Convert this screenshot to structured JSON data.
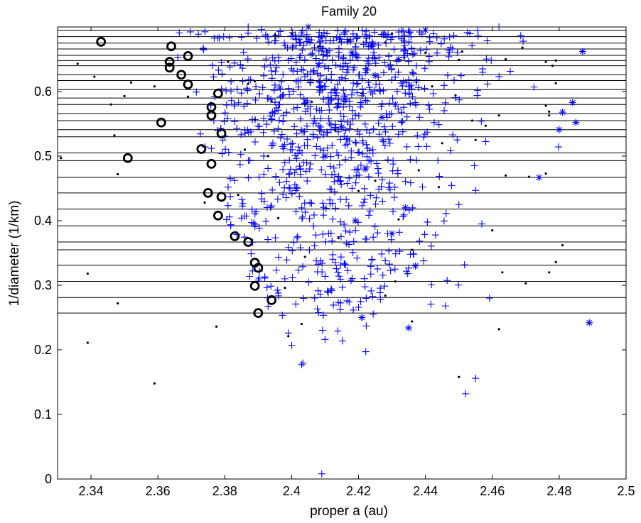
{
  "chart_data": {
    "type": "scatter",
    "title": "Family 20",
    "xlabel": "proper a (au)",
    "ylabel": "1/diameter (1/km)",
    "xlim": [
      2.33,
      2.5
    ],
    "ylim": [
      0,
      0.7
    ],
    "xticks": [
      2.34,
      2.36,
      2.38,
      2.4,
      2.42,
      2.44,
      2.46,
      2.48,
      2.5
    ],
    "xtick_labels": [
      "2.34",
      "2.36",
      "2.38",
      "2.4",
      "2.42",
      "2.44",
      "2.46",
      "2.48",
      "2.5"
    ],
    "yticks": [
      0,
      0.1,
      0.2,
      0.3,
      0.4,
      0.5,
      0.6
    ],
    "ytick_labels": [
      "0",
      "0.1",
      "0.2",
      "0.3",
      "0.4",
      "0.5",
      "0.6"
    ],
    "grid": false,
    "colors": {
      "plus": "#0000ff",
      "star": "#0000ff",
      "dot": "#000000",
      "circle": "#000000",
      "hline": "#000000"
    },
    "horizontal_lines": [
      0.257,
      0.281,
      0.306,
      0.331,
      0.355,
      0.367,
      0.392,
      0.418,
      0.443,
      0.467,
      0.493,
      0.505,
      0.53,
      0.541,
      0.555,
      0.566,
      0.58,
      0.59,
      0.603,
      0.617,
      0.626,
      0.64,
      0.648,
      0.656,
      0.666,
      0.675,
      0.685,
      0.695
    ],
    "series": [
      {
        "marker": "circle",
        "points": [
          [
            2.343,
            0.677
          ],
          [
            2.364,
            0.67
          ],
          [
            2.3635,
            0.646
          ],
          [
            2.3635,
            0.637
          ],
          [
            2.369,
            0.655
          ],
          [
            2.367,
            0.626
          ],
          [
            2.369,
            0.611
          ],
          [
            2.378,
            0.597
          ],
          [
            2.376,
            0.576
          ],
          [
            2.376,
            0.563
          ],
          [
            2.361,
            0.552
          ],
          [
            2.379,
            0.535
          ],
          [
            2.373,
            0.511
          ],
          [
            2.351,
            0.497
          ],
          [
            2.376,
            0.488
          ],
          [
            2.375,
            0.443
          ],
          [
            2.379,
            0.437
          ],
          [
            2.378,
            0.408
          ],
          [
            2.383,
            0.376
          ],
          [
            2.387,
            0.367
          ],
          [
            2.389,
            0.335
          ],
          [
            2.39,
            0.327
          ],
          [
            2.389,
            0.299
          ],
          [
            2.394,
            0.277
          ],
          [
            2.39,
            0.257
          ]
        ]
      },
      {
        "marker": "star",
        "points": [
          [
            2.405,
            0.7
          ],
          [
            2.418,
            0.66
          ],
          [
            2.424,
            0.67
          ],
          [
            2.432,
            0.65
          ],
          [
            2.44,
            0.695
          ],
          [
            2.425,
            0.625
          ],
          [
            2.431,
            0.58
          ],
          [
            2.415,
            0.545
          ],
          [
            2.422,
            0.48
          ],
          [
            2.434,
            0.42
          ],
          [
            2.419,
            0.4
          ],
          [
            2.437,
            0.33
          ],
          [
            2.43,
            0.38
          ],
          [
            2.421,
            0.25
          ],
          [
            2.435,
            0.234
          ],
          [
            2.487,
            0.662
          ],
          [
            2.484,
            0.583
          ],
          [
            2.481,
            0.568
          ],
          [
            2.48,
            0.541
          ],
          [
            2.485,
            0.552
          ],
          [
            2.474,
            0.467
          ],
          [
            2.489,
            0.242
          ],
          [
            2.41,
            0.5
          ],
          [
            2.427,
            0.56
          ],
          [
            2.408,
            0.64
          ]
        ]
      },
      {
        "marker": "dot",
        "points": [
          [
            2.331,
            0.497
          ],
          [
            2.336,
            0.643
          ],
          [
            2.339,
            0.318
          ],
          [
            2.339,
            0.211
          ],
          [
            2.341,
            0.623
          ],
          [
            2.346,
            0.58
          ],
          [
            2.347,
            0.532
          ],
          [
            2.348,
            0.472
          ],
          [
            2.348,
            0.272
          ],
          [
            2.35,
            0.593
          ],
          [
            2.352,
            0.614
          ],
          [
            2.359,
            0.608
          ],
          [
            2.359,
            0.148
          ],
          [
            2.369,
            0.592
          ],
          [
            2.374,
            0.428
          ],
          [
            2.3775,
            0.236
          ],
          [
            2.389,
            0.616
          ],
          [
            2.389,
            0.557
          ],
          [
            2.398,
            0.296
          ],
          [
            2.399,
            0.221
          ],
          [
            2.403,
            0.24
          ],
          [
            2.413,
            0.54
          ],
          [
            2.42,
            0.446
          ],
          [
            2.431,
            0.306
          ],
          [
            2.436,
            0.244
          ],
          [
            2.45,
            0.158
          ],
          [
            2.451,
            0.662
          ],
          [
            2.45,
            0.649
          ],
          [
            2.449,
            0.594
          ],
          [
            2.454,
            0.555
          ],
          [
            2.458,
            0.547
          ],
          [
            2.46,
            0.385
          ],
          [
            2.462,
            0.563
          ],
          [
            2.462,
            0.232
          ],
          [
            2.463,
            0.32
          ],
          [
            2.464,
            0.47
          ],
          [
            2.464,
            0.65
          ],
          [
            2.469,
            0.668
          ],
          [
            2.47,
            0.303
          ],
          [
            2.471,
            0.468
          ],
          [
            2.476,
            0.646
          ],
          [
            2.476,
            0.578
          ],
          [
            2.476,
            0.473
          ],
          [
            2.477,
            0.563
          ],
          [
            2.477,
            0.32
          ],
          [
            2.477,
            0.569
          ],
          [
            2.478,
            0.64
          ],
          [
            2.479,
            0.613
          ],
          [
            2.479,
            0.648
          ],
          [
            2.479,
            0.336
          ],
          [
            2.481,
            0.362
          ],
          [
            2.445,
            0.52
          ],
          [
            2.442,
            0.608
          ],
          [
            2.438,
            0.478
          ],
          [
            2.436,
            0.355
          ],
          [
            2.428,
            0.284
          ],
          [
            2.432,
            0.402
          ],
          [
            2.425,
            0.462
          ],
          [
            2.43,
            0.69
          ],
          [
            2.428,
            0.676
          ],
          [
            2.417,
            0.68
          ],
          [
            2.408,
            0.67
          ],
          [
            2.4,
            0.69
          ],
          [
            2.395,
            0.688
          ],
          [
            2.406,
            0.584
          ],
          [
            2.394,
            0.585
          ],
          [
            2.393,
            0.5
          ],
          [
            2.396,
            0.404
          ],
          [
            2.404,
            0.344
          ],
          [
            2.384,
            0.44
          ],
          [
            2.386,
            0.51
          ],
          [
            2.381,
            0.646
          ],
          [
            2.387,
            0.612
          ],
          [
            2.414,
            0.373
          ],
          [
            2.421,
            0.597
          ],
          [
            2.444,
            0.452
          ],
          [
            2.44,
            0.66
          ],
          [
            2.455,
            0.525
          ]
        ]
      }
    ],
    "plus_clouds": [
      {
        "cx": 2.412,
        "cy": 0.62,
        "sx": 0.02,
        "sy": 0.06,
        "n": 340
      },
      {
        "cx": 2.405,
        "cy": 0.47,
        "sx": 0.015,
        "sy": 0.08,
        "n": 220
      },
      {
        "cx": 2.423,
        "cy": 0.52,
        "sx": 0.017,
        "sy": 0.09,
        "n": 200
      },
      {
        "cx": 2.413,
        "cy": 0.33,
        "sx": 0.017,
        "sy": 0.05,
        "n": 110
      },
      {
        "cx": 2.427,
        "cy": 0.66,
        "sx": 0.018,
        "sy": 0.03,
        "n": 80
      }
    ],
    "plus_extra_points": [
      [
        2.409,
        0.008
      ],
      [
        2.403,
        0.177
      ],
      [
        2.452,
        0.132
      ],
      [
        2.455,
        0.156
      ],
      [
        2.446,
        0.268
      ],
      [
        2.45,
        0.425
      ],
      [
        2.455,
        0.447
      ],
      [
        2.462,
        0.7
      ],
      [
        2.4,
        0.207
      ],
      [
        2.399,
        0.226
      ],
      [
        2.421,
        0.25
      ],
      [
        2.42,
        0.266
      ],
      [
        2.412,
        0.292
      ],
      [
        2.388,
        0.397
      ],
      [
        2.385,
        0.404
      ],
      [
        2.381,
        0.452
      ],
      [
        2.38,
        0.531
      ],
      [
        2.382,
        0.586
      ],
      [
        2.379,
        0.604
      ],
      [
        2.385,
        0.684
      ],
      [
        2.387,
        0.7
      ],
      [
        2.391,
        0.696
      ],
      [
        2.376,
        0.512
      ],
      [
        2.392,
        0.313
      ],
      [
        2.396,
        0.288
      ]
    ]
  }
}
